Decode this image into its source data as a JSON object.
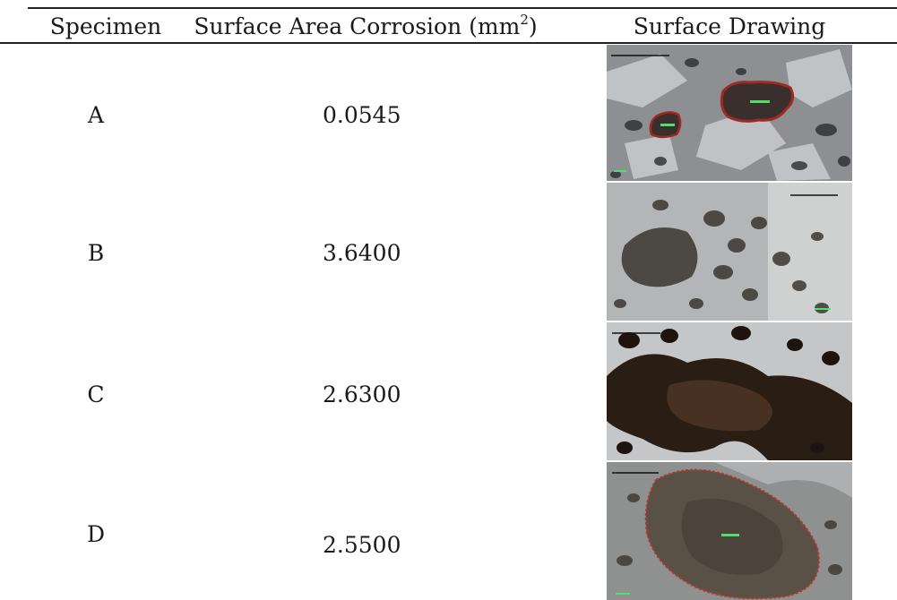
{
  "table": {
    "headers": {
      "specimen": "Specimen",
      "area_main": "Surface Area Corrosion (mm",
      "area_sup": "2",
      "area_close": ")",
      "drawing": "Surface Drawing"
    },
    "rows": [
      {
        "specimen": "A",
        "area": "0.0545",
        "image": "micrograph-a"
      },
      {
        "specimen": "B",
        "area": "3.6400",
        "image": "micrograph-b"
      },
      {
        "specimen": "C",
        "area": "2.6300",
        "image": "micrograph-c"
      },
      {
        "specimen": "D",
        "area": "2.5500",
        "image": "micrograph-d"
      }
    ]
  }
}
